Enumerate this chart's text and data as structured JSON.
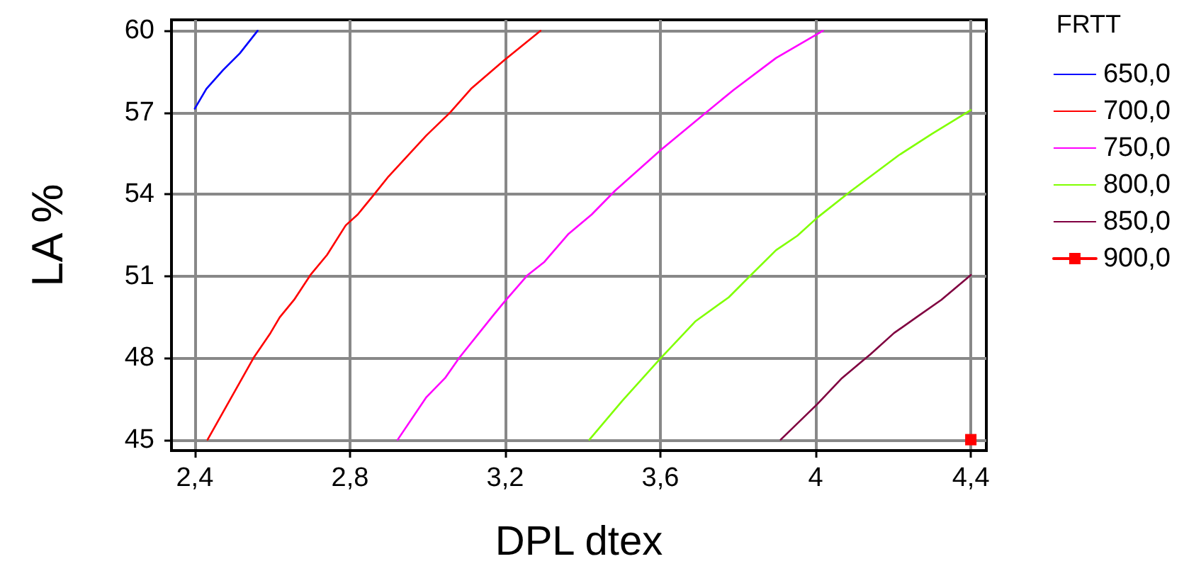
{
  "chart_data": {
    "type": "line",
    "xlabel": "DPL dtex",
    "ylabel": "LA %",
    "legend_title": "FRTT",
    "legend": "right",
    "grid": true,
    "marker": "none",
    "line_style": "solid",
    "xlim": [
      2.34,
      4.44
    ],
    "ylim": [
      44.6,
      60.4
    ],
    "xticks": [
      {
        "value": 2.4,
        "label": "2,4"
      },
      {
        "value": 2.8,
        "label": "2,8"
      },
      {
        "value": 3.2,
        "label": "3,2"
      },
      {
        "value": 3.6,
        "label": "3,6"
      },
      {
        "value": 4,
        "label": "4"
      },
      {
        "value": 4.4,
        "label": "4,4"
      }
    ],
    "yticks": [
      45,
      48,
      51,
      54,
      57,
      60
    ],
    "series": [
      {
        "name": "650,0",
        "color": "#0000ff",
        "x": [
          2.4,
          2.43,
          2.473,
          2.516,
          2.562
        ],
        "values": [
          57.14,
          57.87,
          58.56,
          59.17,
          60.0
        ]
      },
      {
        "name": "700,0",
        "color": "#ff0000",
        "x": [
          2.433,
          2.552,
          2.595,
          2.619,
          2.656,
          2.698,
          2.741,
          2.789,
          2.82,
          2.862,
          2.899,
          2.997,
          3.058,
          3.112,
          3.197,
          3.291
        ],
        "values": [
          45.0,
          48.01,
          48.91,
          49.49,
          50.13,
          51.04,
          51.78,
          52.86,
          53.26,
          53.99,
          54.65,
          56.16,
          57.0,
          57.87,
          58.91,
          60.0
        ]
      },
      {
        "name": "750,0",
        "color": "#ff00ff",
        "x": [
          2.923,
          2.997,
          3.045,
          3.082,
          3.167,
          3.197,
          3.258,
          3.301,
          3.362,
          3.423,
          3.483,
          3.602,
          3.703,
          3.788,
          3.898,
          4.019
        ],
        "values": [
          45.0,
          46.56,
          47.26,
          48.01,
          49.52,
          50.04,
          51.04,
          51.52,
          52.53,
          53.26,
          54.13,
          55.64,
          56.83,
          57.82,
          59.0,
          60.0
        ]
      },
      {
        "name": "800,0",
        "color": "#80ff00",
        "x": [
          3.417,
          3.502,
          3.602,
          3.691,
          3.776,
          3.837,
          3.898,
          3.953,
          4.004,
          4.092,
          4.214,
          4.3,
          4.4
        ],
        "values": [
          45.0,
          46.43,
          48.01,
          49.35,
          50.22,
          51.09,
          51.95,
          52.48,
          53.14,
          54.13,
          55.43,
          56.22,
          57.09
        ]
      },
      {
        "name": "850,0",
        "color": "#800040",
        "x": [
          3.91,
          4.004,
          4.068,
          4.141,
          4.202,
          4.263,
          4.324,
          4.4
        ],
        "values": [
          45.0,
          46.3,
          47.26,
          48.13,
          48.91,
          49.52,
          50.13,
          51.04
        ]
      },
      {
        "name": "900,0",
        "color": "#ff0000",
        "marker": "square",
        "x": [
          4.4
        ],
        "values": [
          45.0
        ]
      }
    ]
  }
}
